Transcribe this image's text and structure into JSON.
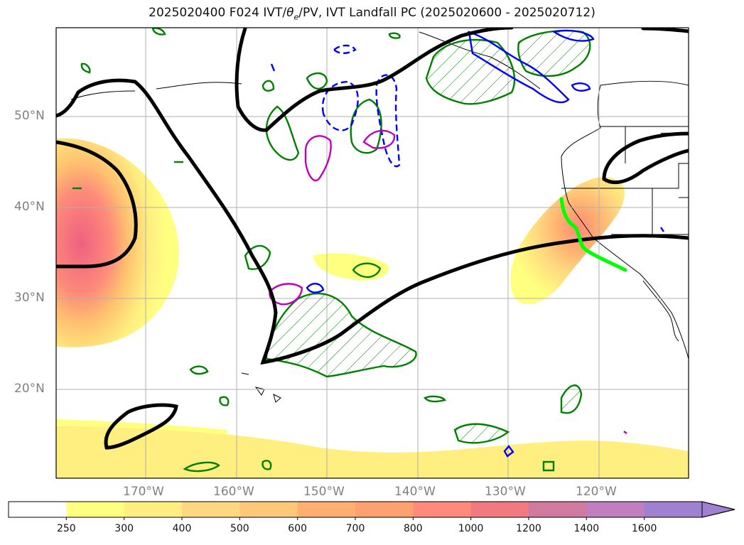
{
  "title": "2025020400 F024 IVT/θe/PV, IVT Landfall PC (2025020600 - 2025020712)",
  "title_parts": {
    "prefix": "2025020400 F024 IVT/",
    "theta": "θ",
    "theta_sub": "e",
    "suffix": "/PV, IVT Landfall PC (2025020600 - 2025020712)"
  },
  "lat_labels": [
    "50°N",
    "40°N",
    "30°N",
    "20°N"
  ],
  "lon_labels": [
    "170°W",
    "160°W",
    "150°W",
    "140°W",
    "130°W",
    "120°W"
  ],
  "colorbar": {
    "ticks": [
      "250",
      "300",
      "400",
      "500",
      "600",
      "700",
      "800",
      "1000",
      "1200",
      "1400",
      "1600"
    ],
    "colors": [
      "#ffffff",
      "#ffff80",
      "#ffee80",
      "#ffd880",
      "#ffc878",
      "#ffb070",
      "#ffa070",
      "#fd8a7a",
      "#f07a80",
      "#d07aa0",
      "#c080c0",
      "#a080d0"
    ],
    "extend": "max"
  },
  "legend_colors": {
    "ivt_fill": "#fff080",
    "theta_e_contour": "#000000",
    "pv_positive": "#008000",
    "pv_negative": "#0000ff",
    "magenta_contour": "#c000c0",
    "landfall_line": "#00ff00"
  },
  "map_extent": {
    "lon_range": [
      -180,
      -110
    ],
    "lat_range": [
      10,
      60
    ]
  }
}
